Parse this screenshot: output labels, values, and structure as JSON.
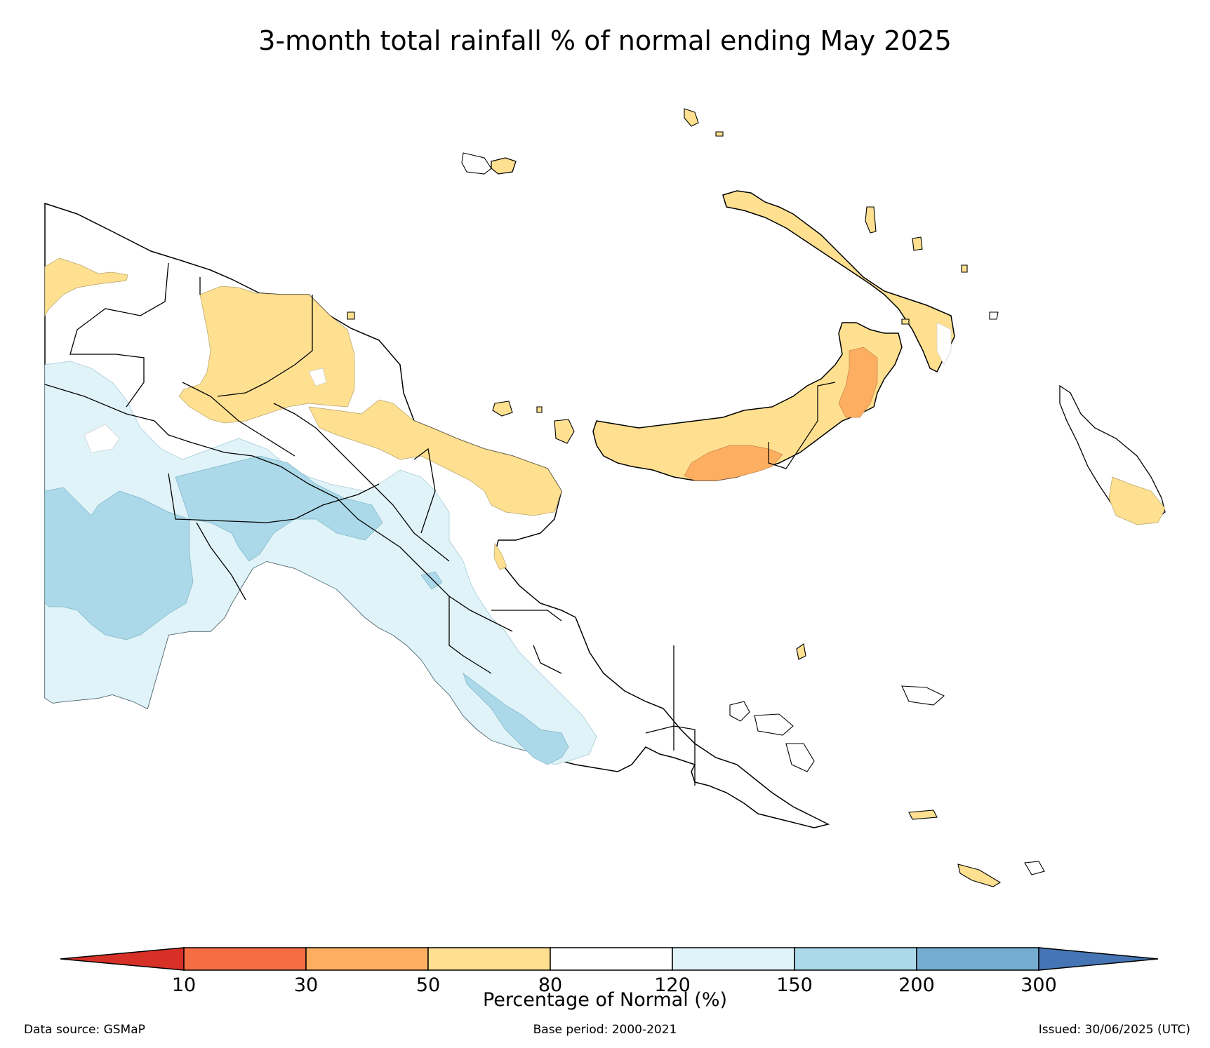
{
  "title": "3-month total rainfall % of normal ending May 2025",
  "colors": {
    "lt10": "#d73027",
    "10_30": "#f46d43",
    "30_50": "#fdae61",
    "50_80": "#fee090",
    "80_120": "#ffffff",
    "120_150": "#e0f3f8",
    "150_200": "#abd9e9",
    "200_300": "#74add1",
    "gt300": "#4575b4"
  },
  "colorbar": {
    "label": "Percentage of Normal (%)",
    "ticks": [
      "10",
      "30",
      "50",
      "80",
      "120",
      "150",
      "200",
      "300"
    ]
  },
  "footer": {
    "source": "Data source: GSMaP",
    "base": "Base period: 2000-2021",
    "issued": "Issued: 30/06/2025 (UTC)"
  }
}
